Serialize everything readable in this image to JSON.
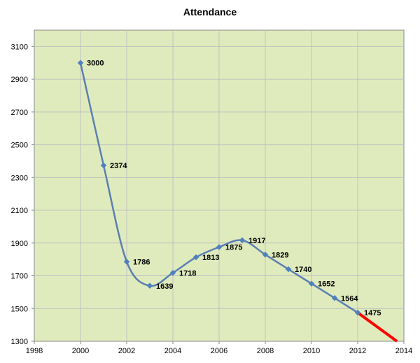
{
  "chart_data": {
    "type": "line",
    "title": "Attendance",
    "xlabel": "",
    "ylabel": "",
    "xlim": [
      1998,
      2014
    ],
    "ylim": [
      1300,
      3200
    ],
    "x_ticks": [
      1998,
      2000,
      2002,
      2004,
      2006,
      2008,
      2010,
      2012,
      2014
    ],
    "y_ticks": [
      1300,
      1500,
      1700,
      1900,
      2100,
      2300,
      2500,
      2700,
      2900,
      3100
    ],
    "grid": true,
    "legend": "none",
    "colors": {
      "plot_background": "#e0ebbd",
      "gridline": "#c0c0c0",
      "series_line": "#5b7fb1",
      "marker": "#4f81bd",
      "projection_line": "#ff0000"
    },
    "series": [
      {
        "x": [
          2000,
          2001,
          2002,
          2003,
          2004,
          2005,
          2006,
          2007,
          2008,
          2009,
          2010,
          2011,
          2012
        ],
        "values": [
          3000,
          2374,
          1786,
          1639,
          1718,
          1813,
          1875,
          1917,
          1829,
          1740,
          1652,
          1564,
          1475
        ],
        "labels": [
          "3000",
          "2374",
          "1786",
          "1639",
          "1718",
          "1813",
          "1875",
          "1917",
          "1829",
          "1740",
          "1652",
          "1564",
          "1475"
        ]
      }
    ],
    "projection": {
      "x": [
        2012,
        2013.7
      ],
      "values": [
        1475,
        1300
      ]
    }
  }
}
